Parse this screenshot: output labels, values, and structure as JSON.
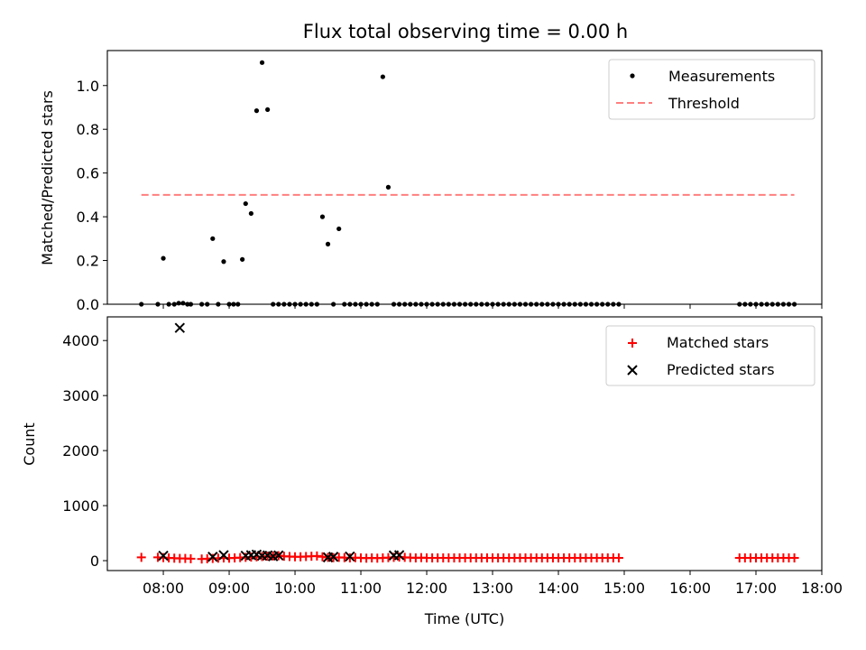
{
  "chart_data": [
    {
      "type": "scatter",
      "title": "Flux total observing time = 0.00 h",
      "xlabel": "",
      "ylabel": "Matched/Predicted stars",
      "xlim_hours": [
        7.15,
        18.0
      ],
      "ylim": [
        0.0,
        1.16
      ],
      "yticks": [
        "0.0",
        "0.2",
        "0.4",
        "0.6",
        "0.8",
        "1.0"
      ],
      "legend_position": "upper right",
      "series": [
        {
          "name": "Measurements",
          "kind": "point",
          "color": "#000000",
          "x_time": [
            "07:40",
            "07:55",
            "08:00",
            "08:05",
            "08:10",
            "08:14",
            "08:18",
            "08:22",
            "08:25",
            "08:35",
            "08:40",
            "08:45",
            "08:50",
            "08:55",
            "09:00",
            "09:04",
            "09:08",
            "09:12",
            "09:15",
            "09:20",
            "09:25",
            "09:30",
            "09:35",
            "09:40",
            "09:45",
            "09:50",
            "09:55",
            "10:00",
            "10:05",
            "10:10",
            "10:15",
            "10:20",
            "10:25",
            "10:30",
            "10:35",
            "10:40",
            "10:45",
            "10:50",
            "10:55",
            "11:00",
            "11:05",
            "11:10",
            "11:15",
            "11:20",
            "11:25",
            "11:30",
            "11:35",
            "11:40",
            "11:45",
            "11:50",
            "11:55",
            "12:00",
            "12:05",
            "12:10",
            "12:15",
            "12:20",
            "12:25",
            "12:30",
            "12:35",
            "12:40",
            "12:45",
            "12:50",
            "12:55",
            "13:00",
            "13:05",
            "13:10",
            "13:15",
            "13:20",
            "13:25",
            "13:30",
            "13:35",
            "13:40",
            "13:45",
            "13:50",
            "13:55",
            "14:00",
            "14:05",
            "14:10",
            "14:15",
            "14:20",
            "14:25",
            "14:30",
            "14:35",
            "14:40",
            "14:45",
            "14:50",
            "14:55",
            "16:45",
            "16:50",
            "16:55",
            "17:00",
            "17:05",
            "17:10",
            "17:15",
            "17:20",
            "17:25",
            "17:30",
            "17:35"
          ],
          "y": [
            0.0,
            0.0,
            0.21,
            0.0,
            0.0,
            0.005,
            0.005,
            0.0,
            0.0,
            0.0,
            0.0,
            0.3,
            0.0,
            0.195,
            0.0,
            0.0,
            0.0,
            0.205,
            0.46,
            0.415,
            0.885,
            1.105,
            0.89,
            0.0,
            0.0,
            0.0,
            0.0,
            0.0,
            0.0,
            0.0,
            0.0,
            0.0,
            0.4,
            0.275,
            0.0,
            0.345,
            0.0,
            0.0,
            0.0,
            0.0,
            0.0,
            0.0,
            0.0,
            1.04,
            0.535,
            0.0,
            0.0,
            0.0,
            0.0,
            0.0,
            0.0,
            0.0,
            0.0,
            0.0,
            0.0,
            0.0,
            0.0,
            0.0,
            0.0,
            0.0,
            0.0,
            0.0,
            0.0,
            0.0,
            0.0,
            0.0,
            0.0,
            0.0,
            0.0,
            0.0,
            0.0,
            0.0,
            0.0,
            0.0,
            0.0,
            0.0,
            0.0,
            0.0,
            0.0,
            0.0,
            0.0,
            0.0,
            0.0,
            0.0,
            0.0,
            0.0,
            0.0,
            0.0,
            0.0,
            0.0,
            0.0,
            0.0,
            0.0,
            0.0,
            0.0,
            0.0,
            0.0,
            0.0
          ]
        },
        {
          "name": "Threshold",
          "kind": "dashed-line",
          "color": "#ff7f7f",
          "x_time": [
            "07:40",
            "17:35"
          ],
          "y": [
            0.5,
            0.5
          ]
        }
      ]
    },
    {
      "type": "scatter",
      "title": "",
      "xlabel": "Time (UTC)",
      "ylabel": "Count",
      "xlim_hours": [
        7.15,
        18.0
      ],
      "ylim": [
        -180,
        4430
      ],
      "yticks": [
        "0",
        "1000",
        "2000",
        "3000",
        "4000"
      ],
      "xticks": [
        "08:00",
        "09:00",
        "10:00",
        "11:00",
        "12:00",
        "13:00",
        "14:00",
        "15:00",
        "16:00",
        "17:00",
        "18:00"
      ],
      "legend_position": "upper right",
      "series": [
        {
          "name": "Matched stars",
          "marker": "plus",
          "color": "#ff0000",
          "x_time": [
            "07:40",
            "07:55",
            "08:00",
            "08:05",
            "08:10",
            "08:15",
            "08:20",
            "08:25",
            "08:35",
            "08:40",
            "08:45",
            "08:50",
            "08:55",
            "09:00",
            "09:05",
            "09:10",
            "09:15",
            "09:20",
            "09:25",
            "09:30",
            "09:35",
            "09:40",
            "09:45",
            "09:50",
            "09:55",
            "10:00",
            "10:05",
            "10:10",
            "10:15",
            "10:20",
            "10:25",
            "10:30",
            "10:35",
            "10:40",
            "10:45",
            "10:50",
            "10:55",
            "11:00",
            "11:05",
            "11:10",
            "11:15",
            "11:20",
            "11:25",
            "11:30",
            "11:35",
            "11:40",
            "11:45",
            "11:50",
            "11:55",
            "12:00",
            "12:05",
            "12:10",
            "12:15",
            "12:20",
            "12:25",
            "12:30",
            "12:35",
            "12:40",
            "12:45",
            "12:50",
            "12:55",
            "13:00",
            "13:05",
            "13:10",
            "13:15",
            "13:20",
            "13:25",
            "13:30",
            "13:35",
            "13:40",
            "13:45",
            "13:50",
            "13:55",
            "14:00",
            "14:05",
            "14:10",
            "14:15",
            "14:20",
            "14:25",
            "14:30",
            "14:35",
            "14:40",
            "14:45",
            "14:50",
            "14:55",
            "16:45",
            "16:50",
            "16:55",
            "17:00",
            "17:05",
            "17:10",
            "17:15",
            "17:20",
            "17:25",
            "17:30",
            "17:35"
          ],
          "y": [
            60,
            60,
            55,
            50,
            45,
            40,
            40,
            35,
            30,
            35,
            40,
            45,
            50,
            45,
            50,
            55,
            60,
            65,
            70,
            75,
            80,
            85,
            90,
            80,
            75,
            70,
            70,
            75,
            80,
            85,
            70,
            60,
            55,
            60,
            55,
            50,
            55,
            50,
            45,
            50,
            45,
            50,
            55,
            60,
            65,
            60,
            55,
            50,
            55,
            50,
            50,
            50,
            50,
            50,
            50,
            50,
            50,
            50,
            50,
            50,
            50,
            50,
            50,
            50,
            50,
            50,
            50,
            50,
            50,
            50,
            50,
            50,
            50,
            50,
            50,
            50,
            50,
            50,
            50,
            50,
            50,
            50,
            50,
            50,
            50,
            50,
            50,
            50,
            50,
            50,
            50,
            50,
            50,
            50,
            50,
            50
          ]
        },
        {
          "name": "Predicted stars",
          "marker": "x",
          "color": "#000000",
          "x_time": [
            "08:00",
            "08:15",
            "08:45",
            "08:55",
            "09:15",
            "09:20",
            "09:25",
            "09:30",
            "09:35",
            "09:40",
            "09:45",
            "10:30",
            "10:35",
            "10:50",
            "11:30",
            "11:35"
          ],
          "y": [
            90,
            4230,
            70,
            100,
            90,
            100,
            110,
            90,
            95,
            80,
            95,
            60,
            70,
            75,
            95,
            100
          ]
        }
      ]
    }
  ]
}
